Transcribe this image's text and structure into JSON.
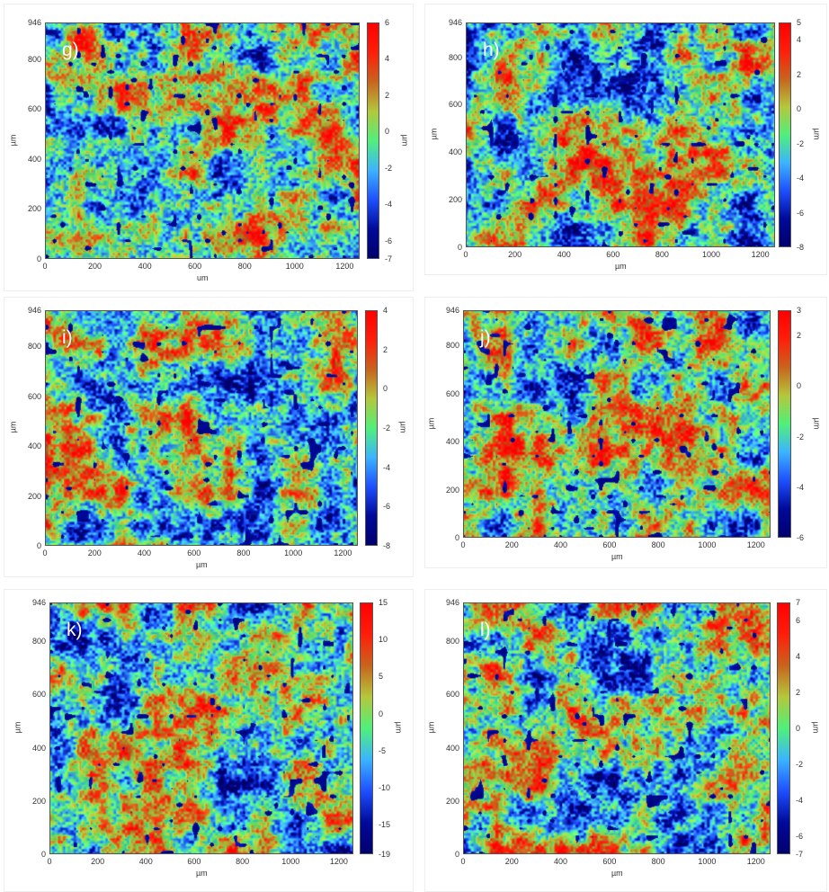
{
  "chart_data": {
    "type": "heatmap",
    "title": "",
    "panels": [
      {
        "label": "g)",
        "xlabel": "um",
        "ylabel": "µm",
        "cbar_label": "µm",
        "xlim": [
          0,
          1260
        ],
        "ylim": [
          0,
          946
        ],
        "xticks": [
          "0",
          "200",
          "400",
          "600",
          "800",
          "1000",
          "1200"
        ],
        "yticks": [
          "0",
          "200",
          "400",
          "600",
          "800",
          "946"
        ],
        "cbar_range": [
          -7,
          6
        ],
        "cbar_ticks": [
          "6",
          "4",
          "2",
          "0",
          "-2",
          "-4",
          "-6",
          "-7"
        ]
      },
      {
        "label": "h)",
        "xlabel": "µm",
        "ylabel": "µm",
        "cbar_label": "µm",
        "xlim": [
          0,
          1260
        ],
        "ylim": [
          0,
          946
        ],
        "xticks": [
          "0",
          "200",
          "400",
          "600",
          "800",
          "1000",
          "1200"
        ],
        "yticks": [
          "0",
          "200",
          "400",
          "600",
          "800",
          "946"
        ],
        "cbar_range": [
          -8,
          5
        ],
        "cbar_ticks": [
          "5",
          "4",
          "2",
          "0",
          "-2",
          "-4",
          "-6",
          "-8"
        ]
      },
      {
        "label": "i)",
        "xlabel": "µm",
        "ylabel": "µm",
        "cbar_label": "µm",
        "xlim": [
          0,
          1260
        ],
        "ylim": [
          0,
          946
        ],
        "xticks": [
          "0",
          "200",
          "400",
          "600",
          "800",
          "1000",
          "1200"
        ],
        "yticks": [
          "0",
          "200",
          "400",
          "600",
          "800",
          "946"
        ],
        "cbar_range": [
          -8,
          4
        ],
        "cbar_ticks": [
          "4",
          "2",
          "0",
          "-2",
          "-4",
          "-6",
          "-8"
        ]
      },
      {
        "label": "j)",
        "xlabel": "µm",
        "ylabel": "µm",
        "cbar_label": "µm",
        "xlim": [
          0,
          1260
        ],
        "ylim": [
          0,
          946
        ],
        "xticks": [
          "0",
          "200",
          "400",
          "600",
          "800",
          "1000",
          "1200"
        ],
        "yticks": [
          "0",
          "200",
          "400",
          "600",
          "800",
          "946"
        ],
        "cbar_range": [
          -6,
          3
        ],
        "cbar_ticks": [
          "3",
          "2",
          "0",
          "-2",
          "-4",
          "-6"
        ]
      },
      {
        "label": "k)",
        "xlabel": "µm",
        "ylabel": "µm",
        "cbar_label": "µm",
        "xlim": [
          0,
          1260
        ],
        "ylim": [
          0,
          946
        ],
        "xticks": [
          "0",
          "200",
          "400",
          "600",
          "800",
          "1000",
          "1200"
        ],
        "yticks": [
          "0",
          "200",
          "400",
          "600",
          "800",
          "946"
        ],
        "cbar_range": [
          -19,
          15
        ],
        "cbar_ticks": [
          "15",
          "10",
          "5",
          "0",
          "-5",
          "-10",
          "-15",
          "-19"
        ]
      },
      {
        "label": "l)",
        "xlabel": "µm",
        "ylabel": "µm",
        "cbar_label": "µm",
        "xlim": [
          0,
          1260
        ],
        "ylim": [
          0,
          946
        ],
        "xticks": [
          "0",
          "200",
          "400",
          "600",
          "800",
          "1000",
          "1200"
        ],
        "yticks": [
          "0",
          "200",
          "400",
          "600",
          "800",
          "946"
        ],
        "cbar_range": [
          -7,
          7
        ],
        "cbar_ticks": [
          "7",
          "6",
          "4",
          "2",
          "0",
          "-2",
          "-4",
          "-6",
          "-7"
        ]
      }
    ],
    "colormap": [
      "#00006e",
      "#000a9a",
      "#1e50ff",
      "#3cb4ff",
      "#50f07a",
      "#b4c83c",
      "#c8641e",
      "#ff1e0a",
      "#ff0000"
    ]
  }
}
